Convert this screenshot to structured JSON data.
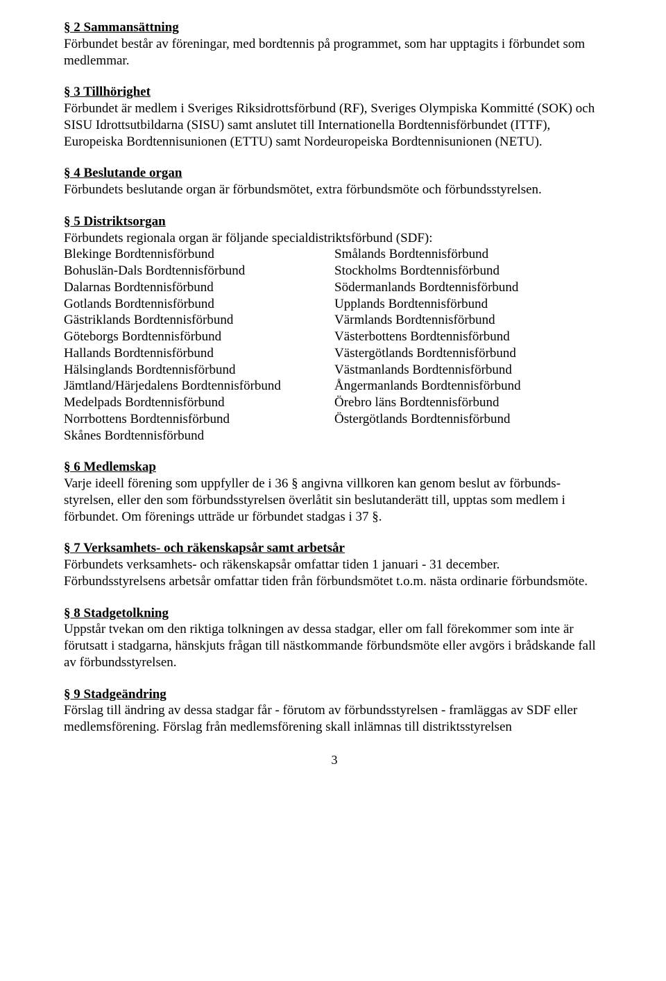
{
  "s2": {
    "heading": "§ 2 Sammansättning",
    "body": "Förbundet består av föreningar, med bordtennis på programmet, som har upptagits i förbundet som medlemmar."
  },
  "s3": {
    "heading": "§ 3 Tillhörighet",
    "body": "Förbundet är medlem i Sveriges Riksidrottsförbund (RF), Sveriges Olympiska Kommitté (SOK) och SISU Idrottsutbildarna (SISU) samt anslutet till Internationella Bordtennisförbundet (ITTF), Europeiska Bordtennisunionen (ETTU) samt Nordeuropeiska Bordtennisunionen (NETU)."
  },
  "s4": {
    "heading": "§ 4 Beslutande organ",
    "body": "Förbundets beslutande organ är förbundsmötet, extra förbundsmöte och förbundsstyrelsen."
  },
  "s5": {
    "heading": "§ 5 Distriktsorgan",
    "intro": "Förbundets regionala organ är följande specialdistriktsförbund (SDF):",
    "left": [
      "Blekinge Bordtennisförbund",
      "Bohuslän-Dals Bordtennisförbund",
      "Dalarnas Bordtennisförbund",
      "Gotlands Bordtennisförbund",
      "Gästriklands Bordtennisförbund",
      "Göteborgs Bordtennisförbund",
      "Hallands Bordtennisförbund",
      "Hälsinglands Bordtennisförbund",
      "Jämtland/Härjedalens Bordtennisförbund",
      "Medelpads Bordtennisförbund",
      "Norrbottens Bordtennisförbund",
      "Skånes Bordtennisförbund"
    ],
    "right": [
      "Smålands Bordtennisförbund",
      "Stockholms Bordtennisförbund",
      "Södermanlands Bordtennisförbund",
      "Upplands Bordtennisförbund",
      "Värmlands Bordtennisförbund",
      "Västerbottens Bordtennisförbund",
      "Västergötlands Bordtennisförbund",
      "Västmanlands Bordtennisförbund",
      "Ångermanlands Bordtennisförbund",
      "Örebro läns Bordtennisförbund",
      "Östergötlands Bordtennisförbund"
    ]
  },
  "s6": {
    "heading": "§ 6 Medlemskap",
    "body": "Varje ideell förening som uppfyller de i 36 § angivna villkoren kan genom beslut av förbunds-styrelsen, eller den som förbundsstyrelsen överlåtit sin beslutanderätt till, upptas som medlem i förbundet. Om förenings utträde ur förbundet stadgas i 37 §."
  },
  "s7": {
    "heading": "§ 7 Verksamhets- och räkenskapsår samt arbetsår",
    "body1": "Förbundets verksamhets- och räkenskapsår omfattar tiden 1 januari - 31 december.",
    "body2": "Förbundsstyrelsens arbetsår omfattar tiden från förbundsmötet t.o.m. nästa ordinarie förbundsmöte."
  },
  "s8": {
    "heading": "§ 8 Stadgetolkning",
    "body": "Uppstår tvekan om den riktiga tolkningen av dessa stadgar, eller om fall förekommer som inte är förutsatt i stadgarna, hänskjuts frågan till nästkommande förbundsmöte eller avgörs i brådskande fall av förbundsstyrelsen."
  },
  "s9": {
    "heading": "§ 9 Stadgeändring",
    "body": "Förslag till ändring av dessa stadgar får - förutom av förbundsstyrelsen - framläggas av SDF eller medlemsförening. Förslag från medlemsförening skall inlämnas till distriktsstyrelsen"
  },
  "pageNumber": "3"
}
